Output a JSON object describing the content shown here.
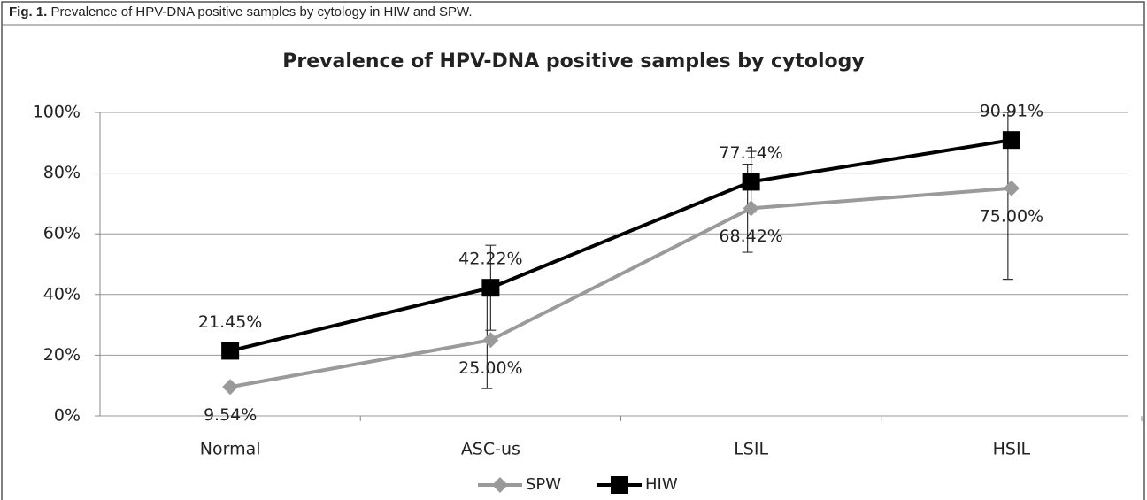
{
  "caption": {
    "label": "Fig. 1.",
    "text": "Prevalence of HPV-DNA positive samples by cytology in HIW and SPW."
  },
  "chart_data": {
    "type": "line",
    "title": "Prevalence of HPV-DNA positive samples by cytology",
    "categories": [
      "Normal",
      "ASC-us",
      "LSIL",
      "HSIL"
    ],
    "series": [
      {
        "name": "SPW",
        "color": "#9a9a9a",
        "marker": "diamond",
        "values": [
          9.54,
          25.0,
          68.42,
          75.0
        ],
        "value_labels": [
          "9.54%",
          "25.00%",
          "68.42%",
          "75.00%"
        ],
        "errors": [
          null,
          16,
          14.5,
          30
        ]
      },
      {
        "name": "HIW",
        "color": "#000000",
        "marker": "square",
        "values": [
          21.45,
          42.22,
          77.14,
          90.91
        ],
        "value_labels": [
          "21.45%",
          "42.22%",
          "77.14%",
          "90.91%"
        ],
        "errors": [
          null,
          14,
          10,
          null
        ]
      }
    ],
    "ylim": [
      0,
      100
    ],
    "yticks": [
      {
        "value": 0,
        "label": "0%"
      },
      {
        "value": 20,
        "label": "20%"
      },
      {
        "value": 40,
        "label": "40%"
      },
      {
        "value": 60,
        "label": "60%"
      },
      {
        "value": 80,
        "label": "80%"
      },
      {
        "value": 100,
        "label": "100%"
      }
    ],
    "grid": true,
    "legend": "bottom"
  }
}
